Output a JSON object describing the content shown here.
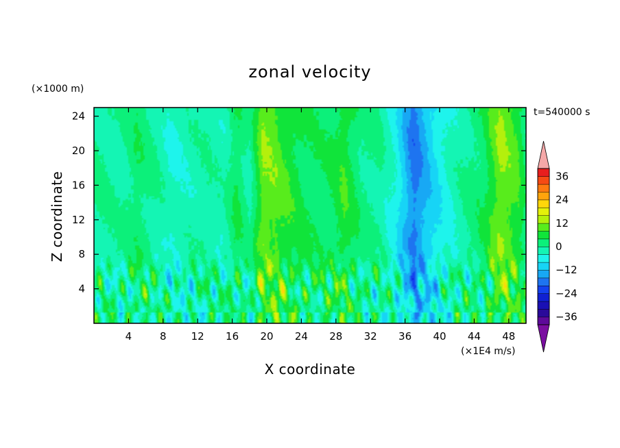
{
  "chart_data": {
    "type": "heatmap",
    "title": "zonal velocity",
    "xlabel": "X coordinate",
    "ylabel": "Z coordinate",
    "x_units": "(×1E4 m/s)",
    "y_units": "(×1000 m)",
    "time_label": "t=540000 s",
    "xlim": [
      0,
      50
    ],
    "ylim": [
      0,
      25
    ],
    "x_ticks": [
      4,
      8,
      12,
      16,
      20,
      24,
      28,
      32,
      36,
      40,
      44,
      48
    ],
    "y_ticks": [
      4,
      8,
      12,
      16,
      20,
      24
    ],
    "x_tick_labels": [
      "4",
      "8",
      "12",
      "16",
      "20",
      "24",
      "28",
      "32",
      "36",
      "40",
      "44",
      "48"
    ],
    "y_tick_labels": [
      "4",
      "8",
      "12",
      "16",
      "20",
      "24"
    ],
    "colorbar": {
      "range": [
        -40,
        40
      ],
      "step": 4,
      "tick_values": [
        36,
        24,
        12,
        0,
        -12,
        -24,
        -36
      ],
      "tick_labels": [
        "36",
        "24",
        "12",
        "0",
        "−12",
        "−24",
        "−36"
      ],
      "extend": "both",
      "over_color": "#f5a8a8",
      "under_color": "#7a0ea0"
    },
    "columns": {
      "x": [
        0,
        3,
        5,
        7.5,
        9,
        11,
        13,
        15,
        16.5,
        18,
        19.5,
        21,
        23,
        25,
        27,
        29,
        31,
        33,
        35,
        37,
        39,
        41,
        43,
        45,
        47,
        49,
        50
      ],
      "upper_level_u": [
        0.5,
        -1,
        3,
        -1,
        -4,
        -2,
        -1,
        -2,
        4,
        -1,
        11,
        10,
        6,
        3,
        3,
        7,
        1,
        0,
        -6,
        -18,
        -10,
        -4,
        0,
        3,
        12,
        8,
        2
      ]
    }
  }
}
